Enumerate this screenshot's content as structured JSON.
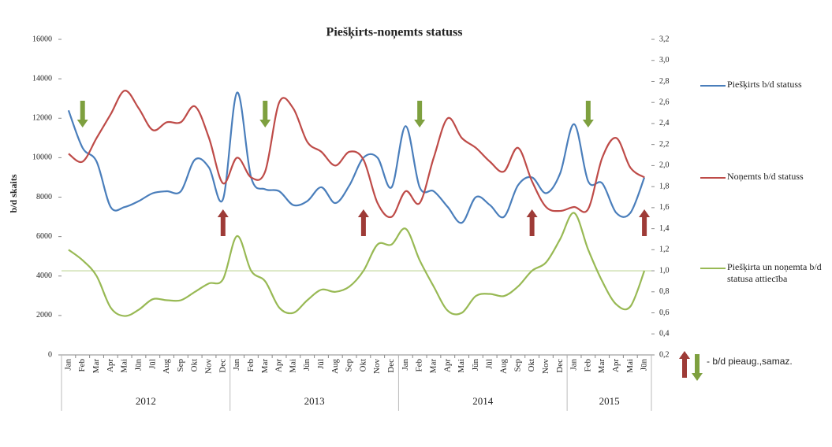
{
  "chart_data": {
    "type": "line",
    "title": "Piešķirts-noņemts statuss",
    "y_label": "b/d skaits",
    "categories": [
      "Jan",
      "Feb",
      "Mar",
      "Apr",
      "Mai",
      "Jūn",
      "Jūl",
      "Aug",
      "Sep",
      "Okt",
      "Nov",
      "Dec",
      "Jan",
      "Feb",
      "Mar",
      "Apr",
      "Mai",
      "Jūn",
      "Jūl",
      "Aug",
      "Sep",
      "Okt",
      "Nov",
      "Dec",
      "Jan",
      "Feb",
      "Mar",
      "Apr",
      "Mai",
      "Jūn",
      "Jūl",
      "Aug",
      "Sep",
      "Okt",
      "Nov",
      "Dec",
      "Jan",
      "Feb",
      "Mar",
      "Apr",
      "Mai",
      "Jūn"
    ],
    "groups": [
      {
        "label": "2012",
        "start": 0,
        "end": 11
      },
      {
        "label": "2013",
        "start": 12,
        "end": 23
      },
      {
        "label": "2014",
        "start": 24,
        "end": 35
      },
      {
        "label": "2015",
        "start": 36,
        "end": 41
      }
    ],
    "series": [
      {
        "name": "Piešķirts b/d statuss",
        "color": "#4a7ebb",
        "values": [
          12400,
          10500,
          9800,
          7500,
          7500,
          7800,
          8200,
          8300,
          8300,
          9900,
          9500,
          7900,
          13300,
          9000,
          8400,
          8300,
          7600,
          7800,
          8500,
          7700,
          8600,
          10000,
          10000,
          8500,
          11600,
          8500,
          8300,
          7500,
          6700,
          8000,
          7600,
          7000,
          8600,
          9000,
          8200,
          9200,
          11700,
          8800,
          8700,
          7200,
          7200,
          9000
        ]
      },
      {
        "name": "Noņemts b/d statuss",
        "color": "#be4b48",
        "values": [
          10200,
          9800,
          11000,
          12200,
          13400,
          12500,
          11400,
          11800,
          11800,
          12600,
          11000,
          8700,
          10000,
          9000,
          9300,
          12800,
          12500,
          10800,
          10300,
          9600,
          10300,
          9900,
          7700,
          7000,
          8300,
          7700,
          10000,
          12000,
          11000,
          10500,
          9800,
          9300,
          10500,
          8800,
          7500,
          7300,
          7500,
          7400,
          10000,
          11000,
          9500,
          9000
        ]
      },
      {
        "name": "Piešķirta un noņemta b/d statusa attiecība",
        "color": "#98b954",
        "axis": "y2",
        "values": [
          1.2,
          1.1,
          0.95,
          0.65,
          0.57,
          0.63,
          0.73,
          0.72,
          0.72,
          0.8,
          0.88,
          0.92,
          1.33,
          1.0,
          0.9,
          0.65,
          0.6,
          0.72,
          0.82,
          0.8,
          0.85,
          1.0,
          1.25,
          1.25,
          1.4,
          1.1,
          0.85,
          0.62,
          0.6,
          0.76,
          0.78,
          0.76,
          0.85,
          1.0,
          1.08,
          1.3,
          1.55,
          1.2,
          0.9,
          0.68,
          0.66,
          1.0
        ]
      }
    ],
    "reference_y2": 1.0,
    "ylim": [
      0,
      16000
    ],
    "yticks": [
      0,
      2000,
      4000,
      6000,
      8000,
      10000,
      12000,
      14000,
      16000
    ],
    "y2lim": [
      0.2,
      3.2
    ],
    "y2ticks": [
      {
        "value": 0.2,
        "label": "0,2"
      },
      {
        "value": 0.4,
        "label": "0,4"
      },
      {
        "value": 0.6,
        "label": "0,6"
      },
      {
        "value": 0.8,
        "label": "0,8"
      },
      {
        "value": 1.0,
        "label": "1,0"
      },
      {
        "value": 1.2,
        "label": "1,2"
      },
      {
        "value": 1.4,
        "label": "1,4"
      },
      {
        "value": 1.6,
        "label": "1,6"
      },
      {
        "value": 1.8,
        "label": "1,8"
      },
      {
        "value": 2.0,
        "label": "2,0"
      },
      {
        "value": 2.2,
        "label": "2,2"
      },
      {
        "value": 2.4,
        "label": "2,4"
      },
      {
        "value": 2.6,
        "label": "2,6"
      },
      {
        "value": 2.8,
        "label": "2,8"
      },
      {
        "value": 3.0,
        "label": "3,0"
      },
      {
        "value": 3.2,
        "label": "3,2"
      }
    ],
    "markers": [
      {
        "kind": "down",
        "index": 1
      },
      {
        "kind": "up",
        "index": 11
      },
      {
        "kind": "down",
        "index": 14
      },
      {
        "kind": "up",
        "index": 21
      },
      {
        "kind": "down",
        "index": 25
      },
      {
        "kind": "up",
        "index": 33
      },
      {
        "kind": "down",
        "index": 37
      },
      {
        "kind": "up",
        "index": 41
      }
    ],
    "marker_legend": "- b/d pieaug.,samaz."
  }
}
